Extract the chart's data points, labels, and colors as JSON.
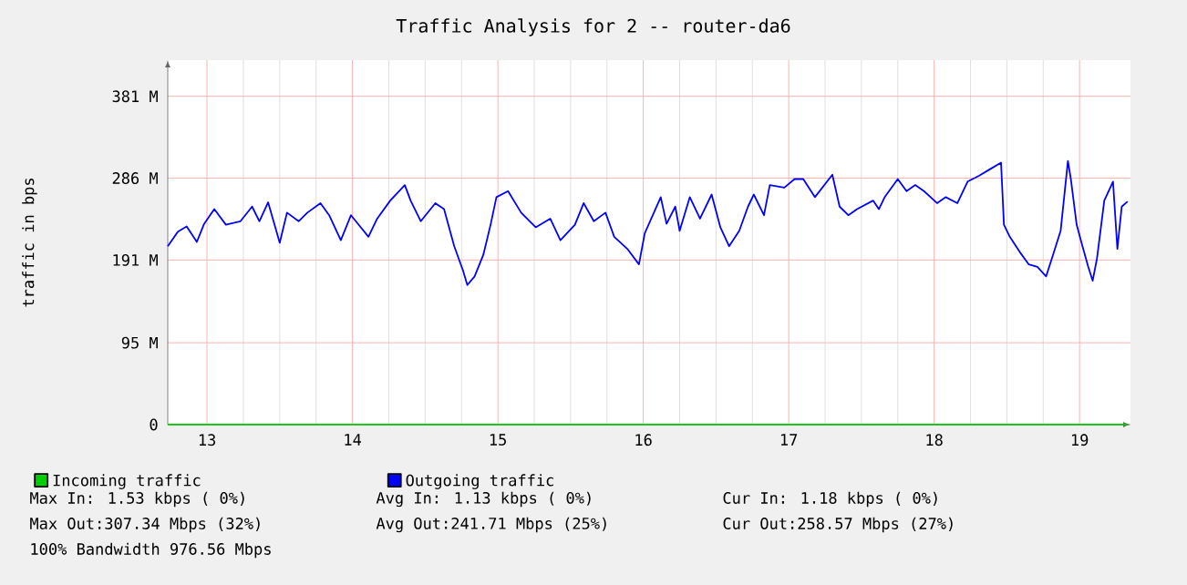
{
  "chart_data": {
    "type": "line",
    "title": "Traffic Analysis for 2 -- router-da6",
    "ylabel": "traffic in bps",
    "xlim": [
      12.73,
      19.35
    ],
    "xticks": [
      13,
      14,
      15,
      16,
      17,
      18,
      19
    ],
    "ylim": [
      0,
      423
    ],
    "yticks": [
      0,
      {
        "value": 95,
        "label": "95 M"
      },
      {
        "value": 191,
        "label": "191 M"
      },
      {
        "value": 286,
        "label": "286 M"
      },
      {
        "value": 381,
        "label": "381 M"
      }
    ],
    "grid": true,
    "legend": "bottom",
    "marker": "none",
    "line_style": "solid",
    "series": [
      {
        "name": "Incoming traffic",
        "color": "#00cc00",
        "x": [
          12.73,
          19.33
        ],
        "values": [
          0,
          0
        ]
      },
      {
        "name": "Outgoing traffic",
        "color": "#0000ff",
        "x": [
          12.73,
          12.8,
          12.86,
          12.93,
          12.98,
          13.05,
          13.13,
          13.23,
          13.31,
          13.36,
          13.42,
          13.5,
          13.55,
          13.63,
          13.69,
          13.78,
          13.84,
          13.92,
          13.99,
          14.11,
          14.17,
          14.26,
          14.36,
          14.4,
          14.47,
          14.57,
          14.63,
          14.7,
          14.76,
          14.79,
          14.84,
          14.9,
          14.95,
          14.99,
          15.07,
          15.16,
          15.26,
          15.36,
          15.43,
          15.53,
          15.59,
          15.66,
          15.74,
          15.8,
          15.89,
          15.97,
          16.01,
          16.12,
          16.16,
          16.22,
          16.25,
          16.32,
          16.39,
          16.47,
          16.53,
          16.59,
          16.66,
          16.72,
          16.76,
          16.83,
          16.87,
          16.97,
          17.04,
          17.1,
          17.18,
          17.3,
          17.35,
          17.41,
          17.47,
          17.58,
          17.62,
          17.66,
          17.75,
          17.81,
          17.87,
          17.93,
          18.02,
          18.08,
          18.16,
          18.23,
          18.31,
          18.39,
          18.46,
          18.48,
          18.52,
          18.59,
          18.65,
          18.71,
          18.77,
          18.81,
          18.87,
          18.92,
          18.94,
          18.98,
          19.02,
          19.06,
          19.09,
          19.12,
          19.17,
          19.23,
          19.26,
          19.29,
          19.33
        ],
        "values": [
          207,
          224,
          230,
          212,
          233,
          250,
          232,
          236,
          253,
          236,
          258,
          211,
          246,
          236,
          246,
          257,
          243,
          214,
          243,
          218,
          239,
          260,
          278,
          260,
          236,
          257,
          250,
          207,
          179,
          162,
          172,
          197,
          232,
          264,
          271,
          246,
          229,
          239,
          214,
          232,
          257,
          236,
          246,
          218,
          204,
          186,
          222,
          264,
          233,
          253,
          225,
          264,
          239,
          267,
          229,
          207,
          225,
          253,
          267,
          243,
          278,
          275,
          285,
          285,
          264,
          290,
          253,
          243,
          250,
          260,
          250,
          264,
          285,
          271,
          278,
          271,
          257,
          264,
          257,
          282,
          289,
          297,
          304,
          232,
          218,
          200,
          186,
          183,
          172,
          193,
          225,
          306,
          285,
          232,
          207,
          183,
          167,
          193,
          260,
          282,
          204,
          253,
          259
        ]
      }
    ],
    "annotations": [
      "Max In:   1.53 kbps ( 0%)",
      "Avg In:   1.13 kbps ( 0%)",
      "Cur In:   1.18 kbps ( 0%)",
      "Max Out:307.34 Mbps (32%)",
      "Avg Out:241.71 Mbps (25%)",
      "Cur Out:258.57 Mbps (27%)",
      "100% Bandwidth 976.56 Mbps"
    ]
  }
}
